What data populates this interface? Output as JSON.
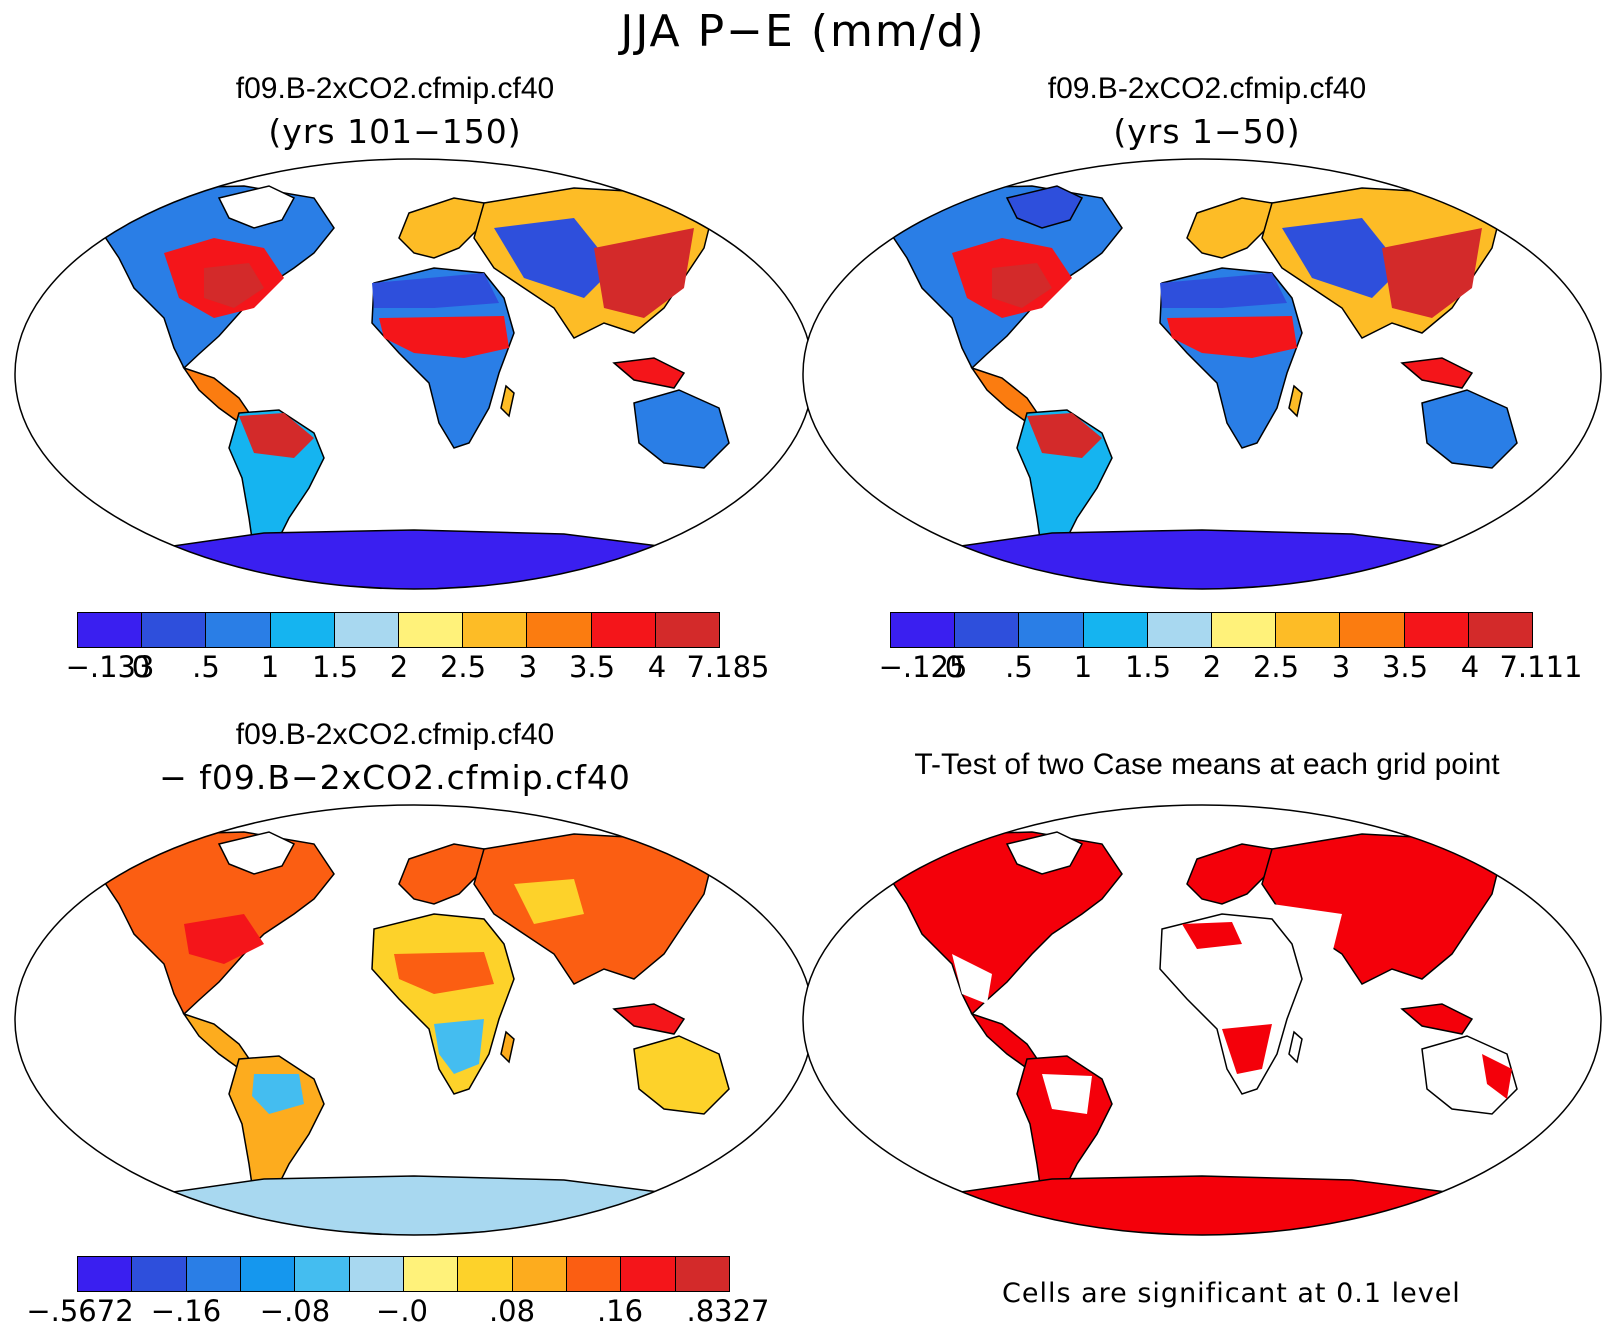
{
  "title": "JJA P−E (mm/d)",
  "panels": {
    "top_left": {
      "title": "f09.B-2xCO2.cfmip.cf40",
      "subtitle": "(yrs 101−150)",
      "colorbar": {
        "colors": [
          "#3a1ff0",
          "#2e4fdc",
          "#2a7ee6",
          "#15b4f0",
          "#a8d8f0",
          "#fff27a",
          "#fdbc26",
          "#fb7c10",
          "#f4151a",
          "#d32a2a"
        ],
        "labels": [
          "−.133",
          "0",
          ".5",
          "1",
          "1.5",
          "2",
          "2.5",
          "3",
          "3.5",
          "4",
          "7.185"
        ]
      }
    },
    "top_right": {
      "title": "f09.B-2xCO2.cfmip.cf40",
      "subtitle": "(yrs 1−50)",
      "colorbar": {
        "colors": [
          "#3a1ff0",
          "#2e4fdc",
          "#2a7ee6",
          "#15b4f0",
          "#a8d8f0",
          "#fff27a",
          "#fdbc26",
          "#fb7c10",
          "#f4151a",
          "#d32a2a"
        ],
        "labels": [
          "−.125",
          "0",
          ".5",
          "1",
          "1.5",
          "2",
          "2.5",
          "3",
          "3.5",
          "4",
          "7.111"
        ]
      }
    },
    "bottom_left": {
      "title": "f09.B-2xCO2.cfmip.cf40",
      "subtitle": "− f09.B−2xCO2.cfmip.cf40",
      "colorbar": {
        "colors": [
          "#3a1ff0",
          "#2e4fdc",
          "#2a7ee6",
          "#1597ee",
          "#44bdf0",
          "#a8d8f0",
          "#fff27a",
          "#fdd22a",
          "#fdac1e",
          "#fb5e12",
          "#f4151a",
          "#d32a2a"
        ],
        "labels": [
          "−.5672",
          "−.16",
          "−.08",
          "−.0",
          ".08",
          ".16",
          ".8327"
        ]
      }
    },
    "bottom_right": {
      "title": "T-Test of two Case means at each grid point",
      "note": "Cells are significant at 0.1 level",
      "significant_color": "#f4000a"
    }
  }
}
